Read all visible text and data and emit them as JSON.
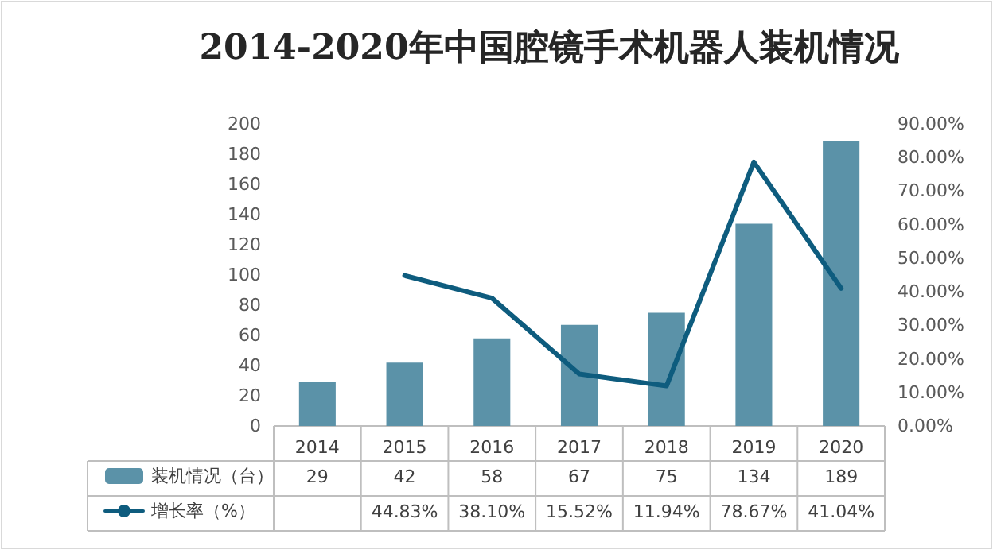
{
  "chart_data": {
    "type": "bar",
    "title": "2014-2020年中国腔镜手术机器人装机情况",
    "categories": [
      "2014",
      "2015",
      "2016",
      "2017",
      "2018",
      "2019",
      "2020"
    ],
    "series": [
      {
        "name": "装机情况（台）",
        "color": "#5b92a8",
        "values": [
          29,
          42,
          58,
          67,
          75,
          134,
          189
        ],
        "value_labels": [
          "29",
          "42",
          "58",
          "67",
          "75",
          "134",
          "189"
        ]
      },
      {
        "name": "增长率（%）",
        "type": "line",
        "axis": "y2",
        "color": "#0e5c7e",
        "values": [
          null,
          44.83,
          38.1,
          15.52,
          11.94,
          78.67,
          41.04
        ],
        "value_labels": [
          null,
          "44.83%",
          "38.10%",
          "15.52%",
          "11.94%",
          "78.67%",
          "41.04%"
        ]
      }
    ],
    "ylim": [
      0,
      200
    ],
    "yticks": [
      0,
      20,
      40,
      60,
      80,
      100,
      120,
      140,
      160,
      180,
      200
    ],
    "y2lim": [
      0,
      90
    ],
    "y2ticks": [
      {
        "value": 0,
        "label": "0.00%"
      },
      {
        "value": 10,
        "label": "10.00%"
      },
      {
        "value": 20,
        "label": "20.00%"
      },
      {
        "value": 30,
        "label": "30.00%"
      },
      {
        "value": 40,
        "label": "40.00%"
      },
      {
        "value": 50,
        "label": "50.00%"
      },
      {
        "value": 60,
        "label": "60.00%"
      },
      {
        "value": 70,
        "label": "70.00%"
      },
      {
        "value": 80,
        "label": "80.00%"
      },
      {
        "value": 90,
        "label": "90.00%"
      }
    ],
    "grid": false,
    "legend": "bottom left",
    "marker": "none",
    "line_style": "solid"
  }
}
